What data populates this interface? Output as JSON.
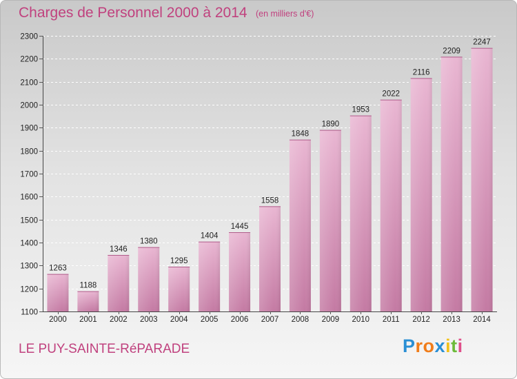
{
  "title": "Charges de Personnel 2000 à 2014",
  "subtitle": "(en milliers d'€)",
  "location": "LE PUY-SAINTE-RéPARADE",
  "brand": {
    "name": "Proxiti",
    "letters": [
      "P",
      "r",
      "o",
      "x",
      "i",
      "t",
      "i"
    ],
    "letter_colors": [
      "#2a8fd4",
      "#f07d1a",
      "#f07d1a",
      "#2a8fd4",
      "#f2c21b",
      "#6cbb3a",
      "#e04f8a"
    ]
  },
  "colors": {
    "bar_light": "#e9b6d2",
    "bar_dark": "#c47aa3",
    "accent": "#c0417e"
  },
  "chart_data": {
    "type": "bar",
    "title": "Charges de Personnel 2000 à 2014",
    "subtitle": "(en milliers d'€)",
    "categories": [
      "2000",
      "2001",
      "2002",
      "2003",
      "2004",
      "2005",
      "2006",
      "2007",
      "2008",
      "2009",
      "2010",
      "2011",
      "2012",
      "2013",
      "2014"
    ],
    "values": [
      1263,
      1188,
      1346,
      1380,
      1295,
      1404,
      1445,
      1558,
      1848,
      1890,
      1953,
      2022,
      2116,
      2209,
      2247
    ],
    "ylim": [
      1100,
      2300
    ],
    "yticks": [
      1100,
      1200,
      1300,
      1400,
      1500,
      1600,
      1700,
      1800,
      1900,
      2000,
      2100,
      2200,
      2300
    ],
    "grid": true,
    "xlabel": "",
    "ylabel": ""
  }
}
